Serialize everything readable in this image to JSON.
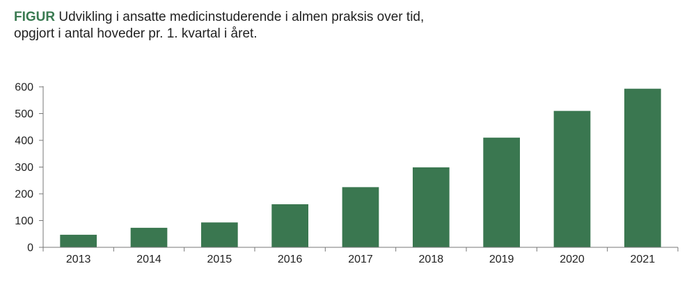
{
  "figure": {
    "label": "FIGUR",
    "title_line1": "Udvikling i ansatte medicinstuderende i almen praksis over tid,",
    "title_line2": "opgjort i antal hoveder pr. 1. kvartal i året."
  },
  "chart_data": {
    "type": "bar",
    "title": "Udvikling i ansatte medicinstuderende i almen praksis over tid, opgjort i antal hoveder pr. 1. kvartal i året.",
    "xlabel": "",
    "ylabel": "",
    "categories": [
      "2013",
      "2014",
      "2015",
      "2016",
      "2017",
      "2018",
      "2019",
      "2020",
      "2021"
    ],
    "values": [
      47,
      73,
      93,
      161,
      225,
      299,
      410,
      510,
      593
    ],
    "ylim": [
      0,
      600
    ],
    "yticks": [
      0,
      100,
      200,
      300,
      400,
      500,
      600
    ],
    "grid": false,
    "legend": "none",
    "bar_color": "#3a7750",
    "axis_color": "#777777"
  }
}
